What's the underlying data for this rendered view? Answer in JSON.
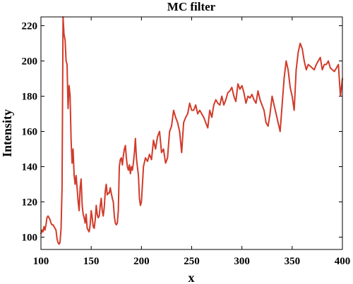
{
  "chart_data": {
    "type": "line",
    "title": "MC filter",
    "xlabel": "x",
    "ylabel": "Intensity",
    "xlim": [
      100,
      400
    ],
    "ylim": [
      93,
      225
    ],
    "xticks": [
      100,
      150,
      200,
      250,
      300,
      350,
      400
    ],
    "yticks": [
      100,
      120,
      140,
      160,
      180,
      200,
      220
    ],
    "grid": false,
    "line_color": "#d13b2a",
    "series": [
      {
        "x": [
          100,
          101,
          102,
          103,
          104,
          105,
          106,
          107,
          108,
          109,
          110,
          111,
          112,
          113,
          114,
          115,
          116,
          117,
          118,
          119,
          120,
          121,
          122,
          123,
          124,
          125,
          126,
          127,
          128,
          129,
          130,
          131,
          132,
          133,
          134,
          135,
          136,
          137,
          138,
          139,
          140,
          141,
          142,
          143,
          144,
          145,
          146,
          147,
          148,
          149,
          150,
          151,
          152,
          153,
          154,
          155,
          156,
          157,
          158,
          159,
          160,
          161,
          162,
          163,
          164,
          165,
          166,
          167,
          168,
          169,
          170,
          171,
          172,
          173,
          174,
          175,
          176,
          177,
          178,
          179,
          180,
          181,
          182,
          183,
          184,
          185,
          186,
          187,
          188,
          189,
          190,
          191,
          192,
          193,
          194,
          195,
          196,
          197,
          198,
          199,
          200,
          202,
          204,
          206,
          208,
          210,
          212,
          214,
          216,
          218,
          220,
          222,
          224,
          226,
          228,
          230,
          232,
          234,
          236,
          238,
          240,
          242,
          244,
          246,
          248,
          250,
          252,
          254,
          256,
          258,
          260,
          262,
          264,
          266,
          268,
          270,
          272,
          274,
          276,
          278,
          280,
          282,
          284,
          286,
          288,
          290,
          292,
          294,
          296,
          298,
          300,
          302,
          304,
          306,
          308,
          310,
          312,
          314,
          316,
          318,
          320,
          322,
          324,
          326,
          328,
          330,
          332,
          334,
          336,
          338,
          340,
          342,
          344,
          346,
          348,
          350,
          352,
          354,
          356,
          358,
          360,
          362,
          364,
          366,
          368,
          370,
          372,
          374,
          376,
          378,
          380,
          382,
          384,
          386,
          388,
          390,
          392,
          394,
          396,
          398,
          400
        ],
        "values": [
          102,
          104,
          103,
          106,
          104,
          107,
          111,
          112,
          111,
          110,
          108,
          107,
          107,
          106,
          105,
          104,
          99,
          97,
          96,
          97,
          105,
          128,
          225,
          215,
          212,
          200,
          198,
          173,
          186,
          180,
          155,
          142,
          150,
          135,
          130,
          135,
          128,
          120,
          115,
          128,
          133,
          118,
          113,
          111,
          108,
          113,
          105,
          104,
          103,
          107,
          115,
          111,
          106,
          105,
          110,
          118,
          113,
          111,
          112,
          118,
          122,
          115,
          112,
          117,
          126,
          130,
          124,
          125,
          125,
          128,
          125,
          122,
          120,
          112,
          108,
          107,
          108,
          115,
          140,
          144,
          145,
          141,
          146,
          150,
          152,
          145,
          140,
          138,
          141,
          136,
          140,
          138,
          142,
          148,
          156,
          145,
          140,
          135,
          122,
          118,
          120,
          140,
          145,
          143,
          147,
          144,
          155,
          150,
          157,
          160,
          148,
          150,
          142,
          145,
          160,
          163,
          172,
          168,
          165,
          160,
          148,
          165,
          168,
          170,
          176,
          172,
          172,
          175,
          170,
          172,
          170,
          168,
          165,
          162,
          172,
          168,
          175,
          178,
          176,
          175,
          180,
          175,
          178,
          182,
          183,
          185,
          180,
          177,
          187,
          184,
          186,
          182,
          176,
          180,
          179,
          181,
          178,
          176,
          183,
          178,
          175,
          172,
          165,
          163,
          170,
          180,
          175,
          170,
          165,
          160,
          175,
          190,
          200,
          195,
          185,
          180,
          172,
          195,
          205,
          210,
          207,
          200,
          195,
          198,
          197,
          196,
          195,
          198,
          200,
          202,
          195,
          198,
          198,
          200,
          196,
          195,
          194,
          196,
          198,
          180,
          190
        ]
      }
    ]
  }
}
